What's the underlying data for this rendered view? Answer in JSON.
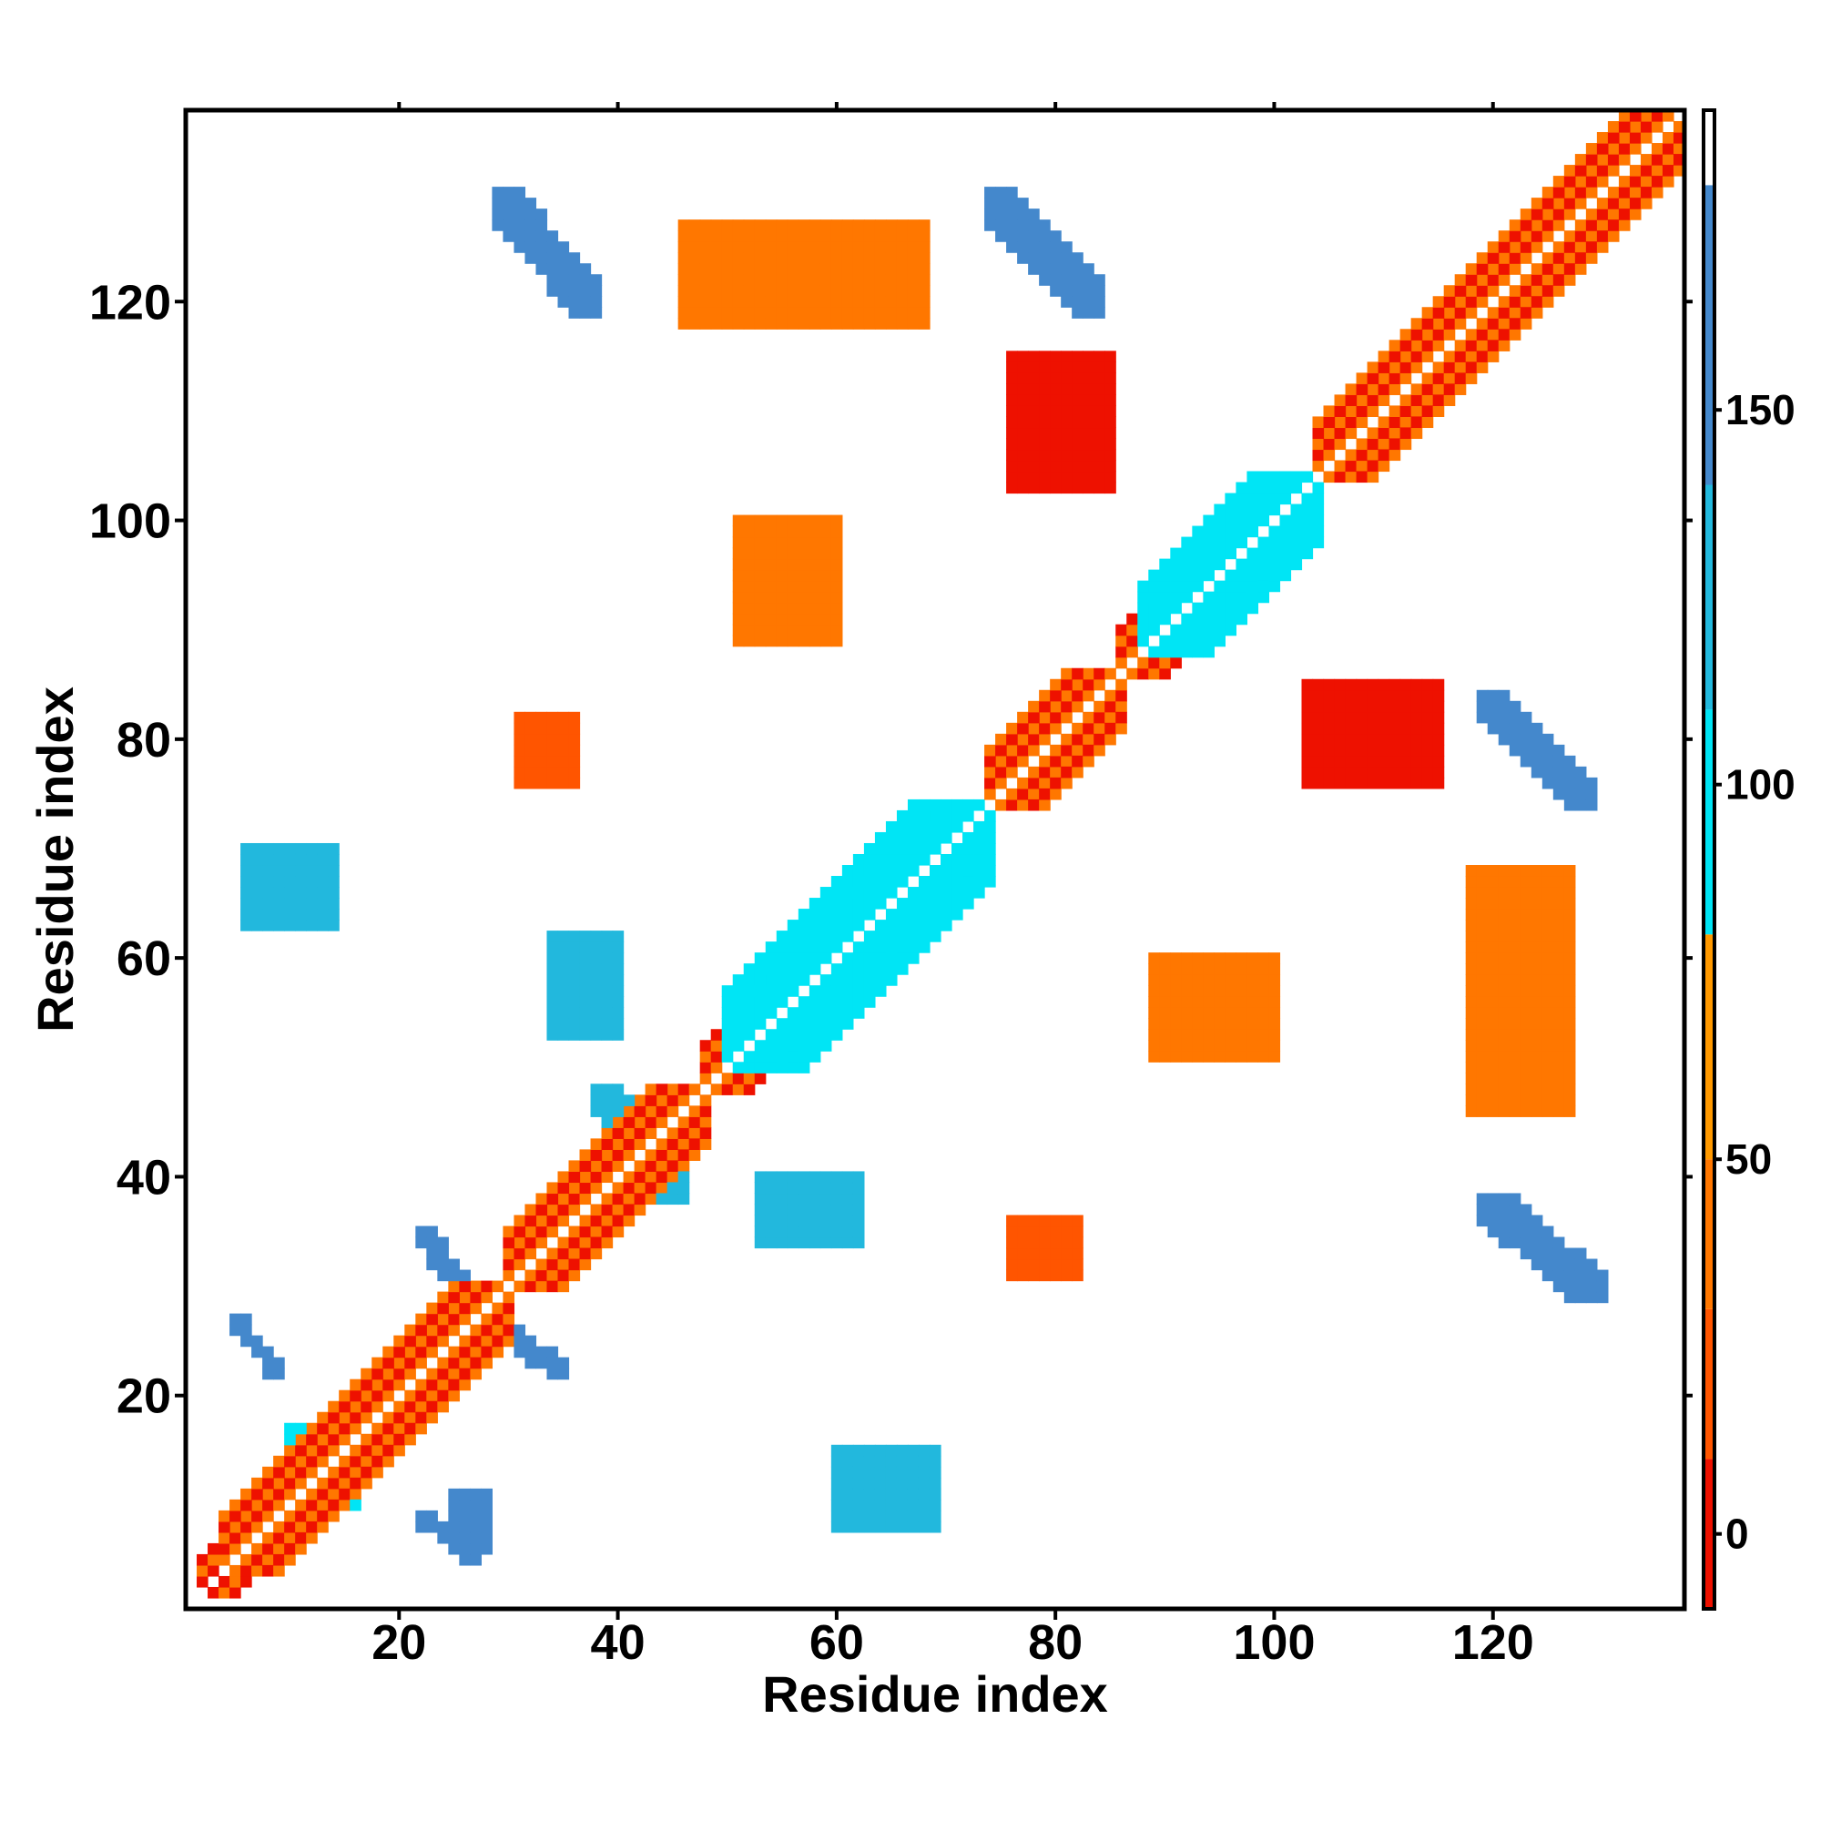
{
  "chart_data": {
    "type": "heatmap",
    "title": "",
    "xlabel": "Residue index",
    "ylabel": "Residue index",
    "xlim": [
      1,
      137
    ],
    "ylim": [
      1,
      137
    ],
    "x_ticks": [
      "20",
      "40",
      "60",
      "80",
      "100",
      "120"
    ],
    "y_ticks": [
      "20",
      "40",
      "60",
      "80",
      "100",
      "120"
    ],
    "grid": false,
    "legend": "colorbar-right",
    "colorbar": {
      "range": [
        -10,
        190
      ],
      "ticks": [
        "0",
        "50",
        "100",
        "150"
      ],
      "bins": [
        {
          "from": -10,
          "to": 10,
          "color": "#ee1100"
        },
        {
          "from": 10,
          "to": 30,
          "color": "#ff5500"
        },
        {
          "from": 30,
          "to": 50,
          "color": "#ff7700"
        },
        {
          "from": 50,
          "to": 80,
          "color": "#ff9900"
        },
        {
          "from": 80,
          "to": 110,
          "color": "#00e5f5"
        },
        {
          "from": 110,
          "to": 140,
          "color": "#22b8dd"
        },
        {
          "from": 140,
          "to": 180,
          "color": "#4488cc"
        },
        {
          "from": 180,
          "to": 190,
          "color": "#ffffff"
        }
      ]
    },
    "diagonal": {
      "from": 1,
      "to": 137,
      "value": 0
    },
    "regions": [
      {
        "x": [
          2,
          30
        ],
        "y": [
          2,
          30
        ],
        "band": [
          -3,
          3
        ],
        "value": 5
      },
      {
        "x": [
          4,
          30
        ],
        "y": [
          4,
          30
        ],
        "band": [
          -5,
          5
        ],
        "value": 40
      },
      {
        "x": [
          30,
          48
        ],
        "y": [
          30,
          48
        ],
        "band": [
          -3,
          3
        ],
        "value": 5
      },
      {
        "x": [
          30,
          48
        ],
        "y": [
          30,
          48
        ],
        "band": [
          -5,
          5
        ],
        "value": 40
      },
      {
        "x": [
          48,
          74
        ],
        "y": [
          48,
          74
        ],
        "band": [
          -4,
          4
        ],
        "value": 40
      },
      {
        "x": [
          50,
          74
        ],
        "y": [
          50,
          74
        ],
        "band": [
          -7,
          7
        ],
        "value": 95
      },
      {
        "x": [
          74,
          86
        ],
        "y": [
          74,
          86
        ],
        "band": [
          -3,
          3
        ],
        "value": 5
      },
      {
        "x": [
          74,
          86
        ],
        "y": [
          74,
          86
        ],
        "band": [
          -5,
          5
        ],
        "value": 40
      },
      {
        "x": [
          86,
          104
        ],
        "y": [
          86,
          104
        ],
        "band": [
          -4,
          4
        ],
        "value": 40
      },
      {
        "x": [
          88,
          104
        ],
        "y": [
          88,
          104
        ],
        "band": [
          -6,
          6
        ],
        "value": 95
      },
      {
        "x": [
          104,
          137
        ],
        "y": [
          104,
          137
        ],
        "band": [
          -3,
          3
        ],
        "value": 5
      },
      {
        "x": [
          104,
          137
        ],
        "y": [
          104,
          137
        ],
        "band": [
          -5,
          5
        ],
        "value": 40
      },
      {
        "x": [
          5,
          9
        ],
        "y": [
          22,
          27
        ],
        "anti": true,
        "value": 160
      },
      {
        "x": [
          22,
          27
        ],
        "y": [
          5,
          9
        ],
        "anti": true,
        "value": 160
      },
      {
        "x": [
          22,
          27
        ],
        "y": [
          28,
          35
        ],
        "anti": true,
        "value": 160
      },
      {
        "x": [
          28,
          35
        ],
        "y": [
          22,
          27
        ],
        "anti": true,
        "value": 160
      },
      {
        "x": [
          10,
          16
        ],
        "y": [
          10,
          17
        ],
        "anti": true,
        "value": 100
      },
      {
        "x": [
          18,
          23
        ],
        "y": [
          18,
          23
        ],
        "anti": true,
        "value": 100
      },
      {
        "x": [
          38,
          46
        ],
        "y": [
          38,
          48
        ],
        "anti": true,
        "value": 120
      },
      {
        "x": [
          29,
          38
        ],
        "y": [
          119,
          130
        ],
        "anti": true,
        "value": 160
      },
      {
        "x": [
          119,
          130
        ],
        "y": [
          29,
          38
        ],
        "anti": true,
        "value": 160
      },
      {
        "x": [
          74,
          84
        ],
        "y": [
          119,
          130
        ],
        "anti": true,
        "value": 160
      },
      {
        "x": [
          119,
          129
        ],
        "y": [
          74,
          84
        ],
        "anti": true,
        "value": 160
      },
      {
        "x": [
          76,
          85
        ],
        "y": [
          103,
          115
        ],
        "value": 5
      },
      {
        "x": [
          103,
          115
        ],
        "y": [
          76,
          85
        ],
        "value": 5
      },
      {
        "x": [
          6,
          14
        ],
        "y": [
          63,
          70
        ],
        "value": 110
      },
      {
        "x": [
          34,
          40
        ],
        "y": [
          53,
          62
        ],
        "value": 110
      },
      {
        "x": [
          53,
          62
        ],
        "y": [
          34,
          40
        ],
        "value": 110
      },
      {
        "x": [
          60,
          69
        ],
        "y": [
          8,
          15
        ],
        "value": 110
      },
      {
        "x": [
          25,
          28
        ],
        "y": [
          6,
          11
        ],
        "value": 160
      },
      {
        "x": [
          51,
          60
        ],
        "y": [
          89,
          100
        ],
        "value": 40
      },
      {
        "x": [
          89,
          100
        ],
        "y": [
          51,
          60
        ],
        "value": 40
      },
      {
        "x": [
          46,
          68
        ],
        "y": [
          118,
          127
        ],
        "value": 40
      },
      {
        "x": [
          118,
          127
        ],
        "y": [
          46,
          68
        ],
        "value": 40
      },
      {
        "x": [
          31,
          36
        ],
        "y": [
          76,
          82
        ],
        "value": 20
      },
      {
        "x": [
          76,
          82
        ],
        "y": [
          31,
          36
        ],
        "value": 20
      }
    ]
  }
}
